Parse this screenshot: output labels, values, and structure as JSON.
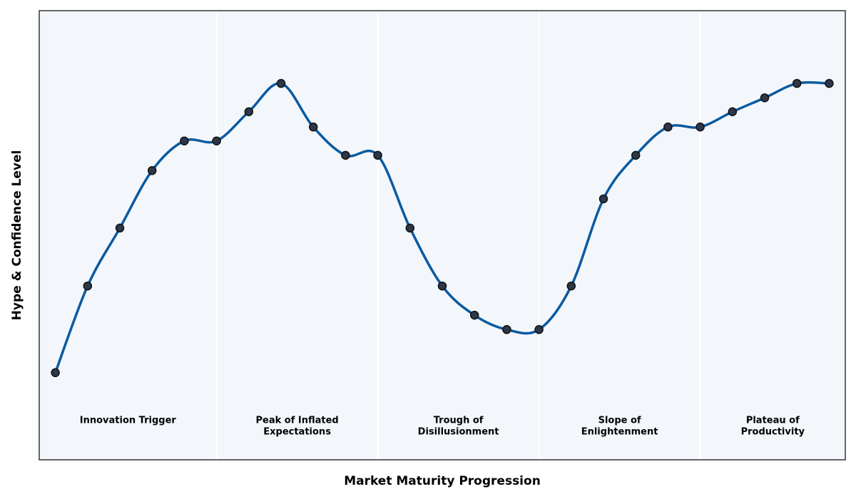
{
  "chart_data": {
    "type": "line",
    "x_label": "Market Maturity Progression",
    "y_label": "Hype & Confidence Level",
    "x": [
      0,
      1,
      2,
      3,
      4,
      5,
      6,
      7,
      8,
      9,
      10,
      11,
      12,
      13,
      14,
      15,
      16,
      17,
      18,
      19,
      20,
      21,
      22,
      23,
      24
    ],
    "values": [
      19.4,
      38.7,
      51.6,
      64.4,
      71.0,
      71.0,
      77.5,
      83.8,
      74.1,
      67.8,
      67.8,
      51.6,
      38.7,
      32.2,
      29.0,
      29.0,
      38.7,
      58.1,
      67.8,
      74.1,
      74.1,
      77.5,
      80.6,
      83.8,
      83.8
    ],
    "color": "#0a5aa0",
    "marker_color": "#2d3748",
    "xlim": [
      -0.5,
      24.5
    ],
    "ylim": [
      0,
      100
    ],
    "phases": [
      {
        "label": [
          "Innovation Trigger"
        ],
        "start": -0.5,
        "end": 5
      },
      {
        "label": [
          "Peak of Inflated",
          "Expectations"
        ],
        "start": 5,
        "end": 10
      },
      {
        "label": [
          "Trough of",
          "Disillusionment"
        ],
        "start": 10,
        "end": 15
      },
      {
        "label": [
          "Slope of",
          "Enlightenment"
        ],
        "start": 15,
        "end": 20
      },
      {
        "label": [
          "Plateau of",
          "Productivity"
        ],
        "start": 20,
        "end": 24.5
      }
    ]
  }
}
